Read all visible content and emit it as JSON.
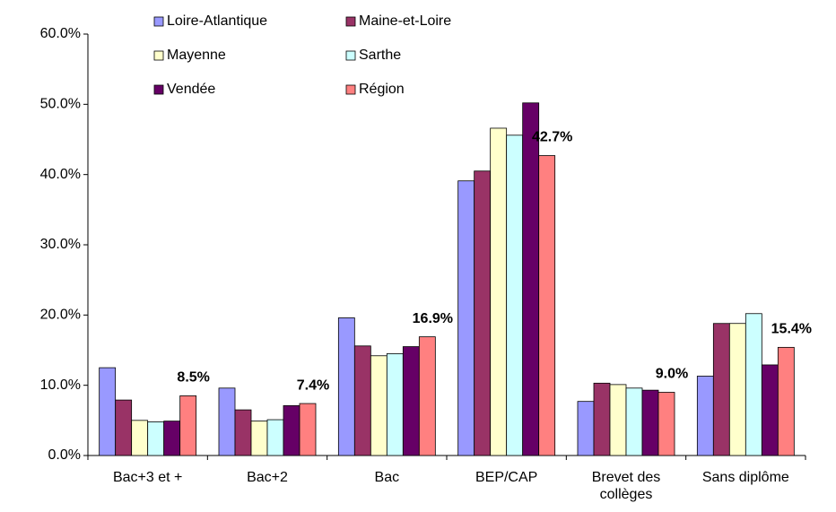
{
  "chart_data": {
    "type": "bar",
    "categories": [
      "Bac+3 et +",
      "Bac+2",
      "Bac",
      "BEP/CAP",
      "Brevet des collèges",
      "Sans diplôme"
    ],
    "series": [
      {
        "name": "Loire-Atlantique",
        "color": "#9999ff",
        "values": [
          12.5,
          9.6,
          19.6,
          39.1,
          7.7,
          11.3
        ]
      },
      {
        "name": "Maine-et-Loire",
        "color": "#993366",
        "values": [
          7.9,
          6.5,
          15.6,
          40.5,
          10.3,
          18.8
        ]
      },
      {
        "name": "Mayenne",
        "color": "#ffffcc",
        "values": [
          5.0,
          4.9,
          14.2,
          46.6,
          10.1,
          18.8
        ]
      },
      {
        "name": "Sarthe",
        "color": "#ccffff",
        "values": [
          4.8,
          5.1,
          14.5,
          45.6,
          9.6,
          20.2
        ]
      },
      {
        "name": "Vendée",
        "color": "#660066",
        "values": [
          4.9,
          7.1,
          15.5,
          50.2,
          9.3,
          12.9
        ]
      },
      {
        "name": "Région",
        "color": "#ff8080",
        "values": [
          8.5,
          7.4,
          16.9,
          42.7,
          9.0,
          15.4
        ],
        "value_labels": [
          "8.5%",
          "7.4%",
          "16.9%",
          "42.7%",
          "9.0%",
          "15.4%"
        ]
      }
    ],
    "ylim": [
      0,
      60
    ],
    "yticks": [
      {
        "value": 0,
        "label": "0.0%"
      },
      {
        "value": 10,
        "label": "10.0%"
      },
      {
        "value": 20,
        "label": "20.0%"
      },
      {
        "value": 30,
        "label": "30.0%"
      },
      {
        "value": 40,
        "label": "40.0%"
      },
      {
        "value": 50,
        "label": "50.0%"
      },
      {
        "value": 60,
        "label": "60.0%"
      }
    ],
    "grid": false,
    "legend": "top"
  }
}
